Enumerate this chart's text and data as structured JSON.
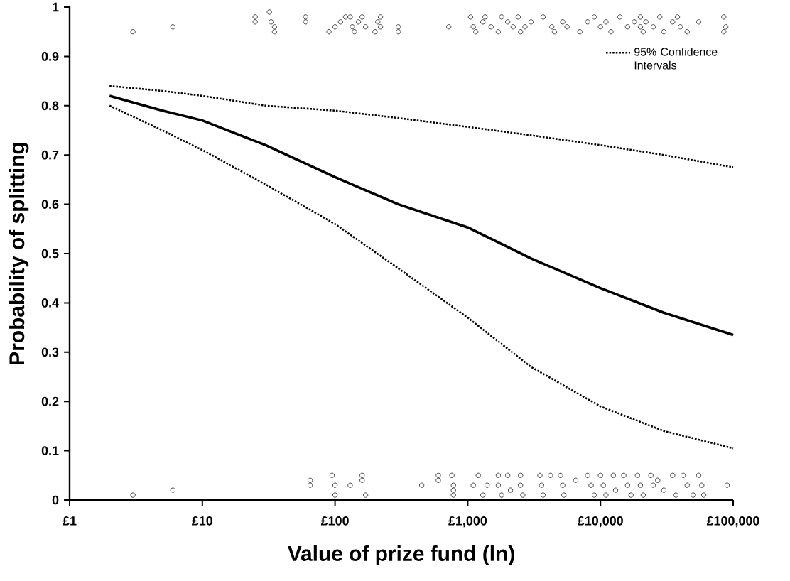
{
  "chart_data": {
    "type": "scatter",
    "xlabel": "Value of prize fund (ln)",
    "ylabel": "Probability of splitting",
    "log": "x",
    "xlim": [
      1,
      100000
    ],
    "xticks": [
      {
        "value": 1,
        "label": "£1"
      },
      {
        "value": 10,
        "label": "£10"
      },
      {
        "value": 100,
        "label": "£100"
      },
      {
        "value": 1000,
        "label": "£1,000"
      },
      {
        "value": 10000,
        "label": "£10,000"
      },
      {
        "value": 100000,
        "label": "£100,000"
      }
    ],
    "ylim": [
      0,
      1
    ],
    "yticks": [
      0,
      0.1,
      0.2,
      0.3,
      0.4,
      0.5,
      0.6,
      0.7,
      0.8,
      0.9,
      1
    ],
    "grid": false,
    "legend": "top right",
    "series": [
      {
        "color": "#444444",
        "marker": "circle",
        "x": [
          3,
          6,
          25,
          25,
          32,
          33,
          35,
          35,
          60,
          60,
          90,
          100,
          110,
          120,
          130,
          135,
          140,
          150,
          160,
          170,
          200,
          210,
          220,
          220,
          300,
          300,
          720,
          1050,
          1100,
          1150,
          1300,
          1350,
          1500,
          1700,
          1800,
          2000,
          2200,
          2400,
          2500,
          2700,
          3000,
          3700,
          4300,
          4500,
          5200,
          5600,
          7000,
          8000,
          9000,
          10000,
          11000,
          12000,
          14000,
          16000,
          18000,
          20000,
          20000,
          21000,
          22000,
          25000,
          28000,
          30000,
          35000,
          38000,
          40000,
          45000,
          55000,
          85000,
          88000,
          85000,
          3,
          6,
          65,
          65,
          95,
          100,
          100,
          130,
          160,
          160,
          170,
          450,
          600,
          600,
          760,
          780,
          780,
          780,
          1100,
          1200,
          1300,
          1400,
          1700,
          1700,
          1800,
          2000,
          2100,
          2500,
          2500,
          2600,
          3500,
          3600,
          3700,
          4200,
          5000,
          5200,
          5300,
          6500,
          8000,
          8500,
          9000,
          10000,
          10500,
          11000,
          12500,
          13000,
          15000,
          16000,
          17000,
          19000,
          20000,
          21000,
          24000,
          25000,
          27000,
          30000,
          35000,
          37000,
          42000,
          45000,
          50000,
          55000,
          58000,
          60000,
          90000
        ],
        "values": [
          0.95,
          0.96,
          0.97,
          0.98,
          0.99,
          0.97,
          0.96,
          0.95,
          0.97,
          0.98,
          0.95,
          0.96,
          0.97,
          0.98,
          0.98,
          0.96,
          0.95,
          0.97,
          0.98,
          0.96,
          0.95,
          0.97,
          0.98,
          0.96,
          0.95,
          0.96,
          0.96,
          0.98,
          0.96,
          0.95,
          0.97,
          0.98,
          0.96,
          0.95,
          0.98,
          0.97,
          0.96,
          0.98,
          0.95,
          0.96,
          0.97,
          0.98,
          0.96,
          0.95,
          0.97,
          0.96,
          0.95,
          0.97,
          0.98,
          0.96,
          0.97,
          0.95,
          0.98,
          0.96,
          0.97,
          0.98,
          0.96,
          0.95,
          0.97,
          0.96,
          0.98,
          0.95,
          0.97,
          0.98,
          0.96,
          0.95,
          0.97,
          0.98,
          0.96,
          0.95,
          0.01,
          0.02,
          0.04,
          0.03,
          0.05,
          0.03,
          0.01,
          0.03,
          0.05,
          0.04,
          0.01,
          0.03,
          0.05,
          0.04,
          0.05,
          0.03,
          0.02,
          0.01,
          0.03,
          0.05,
          0.01,
          0.03,
          0.05,
          0.03,
          0.01,
          0.05,
          0.02,
          0.05,
          0.03,
          0.01,
          0.05,
          0.03,
          0.01,
          0.05,
          0.05,
          0.03,
          0.01,
          0.04,
          0.05,
          0.03,
          0.01,
          0.05,
          0.03,
          0.01,
          0.05,
          0.02,
          0.05,
          0.03,
          0.01,
          0.05,
          0.03,
          0.01,
          0.05,
          0.03,
          0.04,
          0.02,
          0.05,
          0.01,
          0.05,
          0.03,
          0.01,
          0.05,
          0.03,
          0.01,
          0.03
        ]
      },
      {
        "type": "line",
        "color": "#000000",
        "marker": "none",
        "line_style": "solid",
        "x": [
          2,
          5,
          10,
          30,
          100,
          300,
          1000,
          3000,
          10000,
          30000,
          100000
        ],
        "values": [
          0.82,
          0.79,
          0.77,
          0.72,
          0.655,
          0.6,
          0.553,
          0.49,
          0.43,
          0.38,
          0.335
        ]
      },
      {
        "type": "line",
        "color": "#000000",
        "marker": "none",
        "line_style": "dotted",
        "name": "95% Confidence Intervals",
        "x": [
          2,
          5,
          10,
          30,
          100,
          300,
          1000,
          3000,
          10000,
          30000,
          100000
        ],
        "values": [
          0.84,
          0.83,
          0.82,
          0.8,
          0.79,
          0.775,
          0.757,
          0.74,
          0.72,
          0.7,
          0.675
        ]
      },
      {
        "type": "line",
        "color": "#000000",
        "marker": "none",
        "line_style": "dotted",
        "x": [
          2,
          5,
          10,
          30,
          100,
          300,
          1000,
          3000,
          10000,
          30000,
          100000
        ],
        "values": [
          0.8,
          0.75,
          0.71,
          0.64,
          0.56,
          0.47,
          0.37,
          0.27,
          0.19,
          0.14,
          0.105
        ]
      }
    ]
  }
}
